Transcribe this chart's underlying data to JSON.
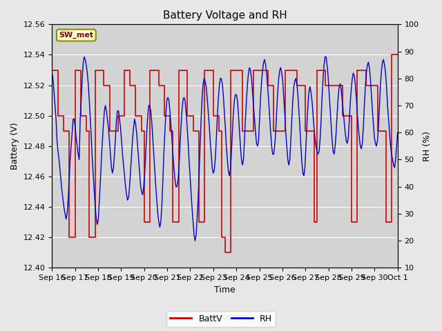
{
  "title": "Battery Voltage and RH",
  "xlabel": "Time",
  "ylabel_left": "Battery (V)",
  "ylabel_right": "RH (%)",
  "station_label": "SW_met",
  "ylim_left": [
    12.4,
    12.56
  ],
  "ylim_right": [
    10,
    100
  ],
  "yticks_left": [
    12.4,
    12.42,
    12.44,
    12.46,
    12.48,
    12.5,
    12.52,
    12.54,
    12.56
  ],
  "yticks_right": [
    10,
    20,
    30,
    40,
    50,
    60,
    70,
    80,
    90,
    100
  ],
  "xtick_labels": [
    "Sep 16",
    "Sep 17",
    "Sep 18",
    "Sep 19",
    "Sep 20",
    "Sep 21",
    "Sep 22",
    "Sep 23",
    "Sep 24",
    "Sep 25",
    "Sep 26",
    "Sep 27",
    "Sep 28",
    "Sep 29",
    "Sep 30",
    "Oct 1"
  ],
  "battv_color": "#cc0000",
  "rh_color": "#0000cc",
  "fig_bg_color": "#e8e8e8",
  "plot_bg_color": "#d3d3d3",
  "legend_battv": "BattV",
  "legend_rh": "RH",
  "title_fontsize": 11,
  "label_fontsize": 9,
  "tick_fontsize": 8,
  "battv_data": [
    12.53,
    12.53,
    12.5,
    12.5,
    12.49,
    12.49,
    12.42,
    12.42,
    12.53,
    12.53,
    12.5,
    12.5,
    12.49,
    12.42,
    12.42,
    12.53,
    12.53,
    12.53,
    12.52,
    12.52,
    12.49,
    12.49,
    12.49,
    12.5,
    12.5,
    12.53,
    12.53,
    12.52,
    12.52,
    12.5,
    12.5,
    12.49,
    12.43,
    12.43,
    12.53,
    12.53,
    12.53,
    12.52,
    12.52,
    12.5,
    12.5,
    12.49,
    12.43,
    12.43,
    12.53,
    12.53,
    12.53,
    12.5,
    12.5,
    12.49,
    12.49,
    12.43,
    12.43,
    12.53,
    12.53,
    12.53,
    12.5,
    12.5,
    12.49,
    12.42,
    12.41,
    12.41,
    12.53,
    12.53,
    12.53,
    12.53,
    12.49,
    12.49,
    12.49,
    12.49,
    12.53,
    12.53,
    12.53,
    12.53,
    12.53,
    12.52,
    12.52,
    12.49,
    12.49,
    12.49,
    12.49,
    12.53,
    12.53,
    12.53,
    12.53,
    12.52,
    12.52,
    12.52,
    12.49,
    12.49,
    12.49,
    12.43,
    12.53,
    12.53,
    12.53,
    12.52,
    12.52,
    12.52,
    12.52,
    12.52,
    12.52,
    12.5,
    12.5,
    12.5,
    12.43,
    12.43,
    12.53,
    12.53,
    12.53,
    12.52,
    12.52,
    12.52,
    12.52,
    12.49,
    12.49,
    12.49,
    12.43,
    12.43,
    12.54,
    12.54,
    12.54
  ],
  "rh_data": [
    82,
    80,
    75,
    70,
    65,
    57,
    53,
    50,
    46,
    42,
    38,
    35,
    32,
    30,
    28,
    30,
    35,
    42,
    50,
    55,
    60,
    65,
    65,
    62,
    58,
    55,
    52,
    50,
    65,
    72,
    80,
    86,
    88,
    87,
    85,
    82,
    78,
    72,
    65,
    58,
    50,
    44,
    38,
    32,
    28,
    26,
    28,
    35,
    42,
    50,
    57,
    63,
    68,
    70,
    68,
    65,
    62,
    57,
    52,
    47,
    45,
    47,
    52,
    58,
    65,
    68,
    68,
    65,
    62,
    57,
    52,
    48,
    44,
    40,
    37,
    35,
    36,
    40,
    46,
    52,
    58,
    62,
    65,
    63,
    60,
    55,
    50,
    45,
    40,
    38,
    37,
    40,
    45,
    52,
    60,
    66,
    70,
    70,
    68,
    64,
    58,
    52,
    46,
    40,
    35,
    30,
    27,
    25,
    27,
    33,
    42,
    52,
    60,
    67,
    72,
    73,
    72,
    68,
    63,
    58,
    52,
    47,
    43,
    40,
    40,
    42,
    47,
    55,
    62,
    68,
    72,
    73,
    72,
    68,
    63,
    57,
    50,
    44,
    38,
    32,
    27,
    22,
    20,
    22,
    28,
    35,
    45,
    55,
    65,
    73,
    78,
    80,
    79,
    77,
    73,
    68,
    63,
    57,
    52,
    47,
    45,
    46,
    50,
    57,
    65,
    72,
    77,
    80,
    80,
    78,
    74,
    68,
    62,
    55,
    50,
    46,
    44,
    46,
    52,
    60,
    67,
    72,
    74,
    74,
    72,
    67,
    61,
    55,
    50,
    48,
    50,
    57,
    65,
    72,
    78,
    82,
    84,
    83,
    80,
    75,
    70,
    65,
    60,
    56,
    55,
    57,
    65,
    73,
    79,
    83,
    86,
    87,
    85,
    82,
    77,
    72,
    66,
    60,
    55,
    52,
    52,
    55,
    60,
    68,
    75,
    80,
    83,
    84,
    82,
    79,
    73,
    67,
    60,
    55,
    50,
    48,
    50,
    57,
    65,
    72,
    77,
    79,
    80,
    78,
    74,
    68,
    62,
    55,
    49,
    45,
    44,
    47,
    55,
    63,
    70,
    75,
    77,
    75,
    72,
    67,
    62,
    58,
    55,
    53,
    52,
    53,
    57,
    64,
    73,
    80,
    85,
    88,
    88,
    85,
    81,
    75,
    69,
    63,
    57,
    53,
    52,
    55,
    60,
    67,
    73,
    77,
    78,
    76,
    72,
    68,
    64,
    60,
    57,
    56,
    58,
    64,
    71,
    76,
    80,
    82,
    81,
    78,
    73,
    67,
    62,
    58,
    55,
    54,
    56,
    62,
    70,
    77,
    82,
    85,
    86,
    84,
    80,
    74,
    68,
    63,
    58,
    56,
    55,
    57,
    62,
    70,
    78,
    83,
    86,
    87,
    85,
    82,
    77,
    70,
    65,
    60,
    55,
    52,
    50,
    48,
    47,
    50,
    55,
    60
  ]
}
